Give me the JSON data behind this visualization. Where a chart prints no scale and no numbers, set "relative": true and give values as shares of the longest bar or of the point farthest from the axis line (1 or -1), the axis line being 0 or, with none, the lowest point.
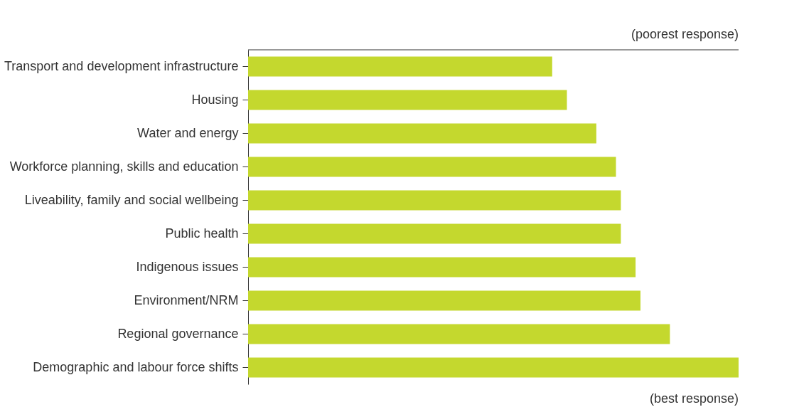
{
  "chart_data": {
    "type": "bar",
    "orientation": "horizontal",
    "relative": true,
    "categories": [
      "Transport and development infrastructure",
      "Housing",
      "Water and energy",
      "Workforce planning, skills and education",
      "Liveability, family and social wellbeing",
      "Public health",
      "Indigenous issues",
      "Environment/NRM",
      "Regional governance",
      "Demographic and labour force shifts"
    ],
    "values": [
      0.62,
      0.65,
      0.71,
      0.75,
      0.76,
      0.76,
      0.79,
      0.8,
      0.86,
      1
    ],
    "color": "#c4d82e",
    "annotations": [
      "(poorest response)",
      "(best response)"
    ],
    "grid": false
  }
}
